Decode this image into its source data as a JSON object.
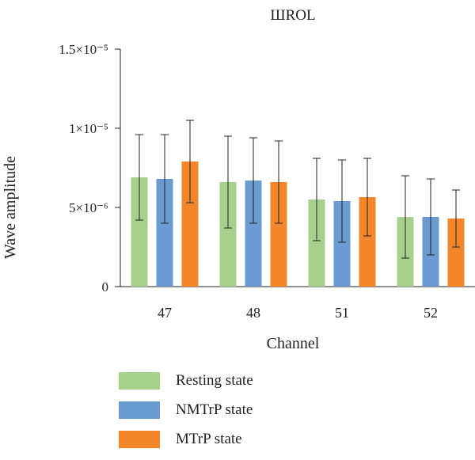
{
  "chart_data": {
    "type": "bar",
    "title": "ШROL",
    "xlabel": "Channel",
    "ylabel": "Wave amplitude",
    "categories": [
      "47",
      "48",
      "51",
      "52"
    ],
    "ylim": [
      0,
      1.5e-05
    ],
    "y_ticks": [
      {
        "value": 0,
        "label": "0"
      },
      {
        "value": 5e-06,
        "label": "5×10⁻⁶"
      },
      {
        "value": 1e-05,
        "label": "1×10⁻⁵"
      },
      {
        "value": 1.5e-05,
        "label": "1.5×10⁻⁵"
      }
    ],
    "grid": false,
    "legend_position": "bottom-left",
    "series": [
      {
        "name": "Resting state",
        "color": "#a8d08d",
        "values": [
          6.9e-06,
          6.6e-06,
          5.5e-06,
          4.4e-06
        ],
        "errors": [
          2.7e-06,
          2.9e-06,
          2.6e-06,
          2.6e-06
        ]
      },
      {
        "name": "NMTrP state",
        "color": "#6a9bd1",
        "values": [
          6.8e-06,
          6.7e-06,
          5.4e-06,
          4.4e-06
        ],
        "errors": [
          2.8e-06,
          2.7e-06,
          2.6e-06,
          2.4e-06
        ]
      },
      {
        "name": "MTrP state",
        "color": "#f4862a",
        "values": [
          7.9e-06,
          6.6e-06,
          5.65e-06,
          4.3e-06
        ],
        "errors": [
          2.6e-06,
          2.6e-06,
          2.45e-06,
          1.8e-06
        ]
      }
    ]
  }
}
